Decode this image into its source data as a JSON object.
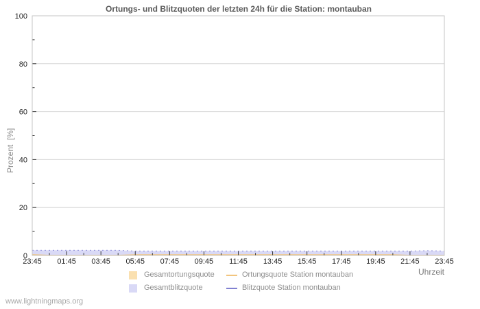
{
  "title": "Ortungs- und Blitzquoten der letzten 24h für die Station: montauban",
  "axes": {
    "y_label": "Prozent  [%]",
    "x_label": "Uhrzeit"
  },
  "watermark": "www.lightningmaps.org",
  "colors": {
    "background": "#ffffff",
    "title": "#5a5a5a",
    "grid": "#d6d6d6",
    "border": "#c6c6c6",
    "tick": "#333333",
    "tick_label": "#1f1f1f",
    "axis_label": "#8a8a8a",
    "legend_text": "#8c8c8c",
    "watermark": "#a8a8a8",
    "area_ortung": "#fae0b0",
    "area_blitz": "#d9d9f6",
    "line_ortung": "#f2c57e",
    "line_blitz": "#8181d1"
  },
  "legend": [
    {
      "label": "Gesamtortungsquote",
      "swatch": "area",
      "color": "#fae0b0"
    },
    {
      "label": "Ortungsquote Station montauban",
      "swatch": "line",
      "color": "#f2c57e"
    },
    {
      "label": "Gesamtblitzquote",
      "swatch": "area",
      "color": "#d9d9f6"
    },
    {
      "label": "Blitzquote Station montauban",
      "swatch": "line",
      "color": "#8181d1"
    }
  ],
  "chart_data": {
    "type": "area",
    "title": "Ortungs- und Blitzquoten der letzten 24h für die Station: montauban",
    "xlabel": "Uhrzeit",
    "ylabel": "Prozent [%]",
    "ylim": [
      0,
      100
    ],
    "y_ticks_major": [
      0,
      20,
      40,
      60,
      80,
      100
    ],
    "y_ticks_minor": [
      10,
      30,
      50,
      70,
      90
    ],
    "grid": "horizontal-only",
    "legend_position": "bottom",
    "x_hours": [
      0,
      1,
      2,
      3,
      4,
      5,
      6,
      7,
      8,
      9,
      10,
      11,
      12,
      13,
      14,
      15,
      16,
      17,
      18,
      19,
      20,
      21,
      22,
      23,
      24
    ],
    "x_tick_labels_major": [
      "23:45",
      "01:45",
      "03:45",
      "05:45",
      "07:45",
      "09:45",
      "11:45",
      "13:45",
      "15:45",
      "17:45",
      "19:45",
      "21:45",
      "23:45"
    ],
    "series": [
      {
        "name": "Gesamtortungsquote",
        "type": "area",
        "color": "#fae0b0",
        "values": [
          0.4,
          0.1,
          0.1,
          0.1,
          0.1,
          0.1,
          0.35,
          0.35,
          0.35,
          0.35,
          0.35,
          0.35,
          0.35,
          0.35,
          0.35,
          0.35,
          0.35,
          0.35,
          0.35,
          0.35,
          0.35,
          0.35,
          0.1,
          0.1,
          0.1
        ]
      },
      {
        "name": "Gesamtblitzquote",
        "type": "area",
        "color": "#d9d9f6",
        "values": [
          2.2,
          2.2,
          2.2,
          2.2,
          2.2,
          2.2,
          1.8,
          1.8,
          1.8,
          1.8,
          1.8,
          1.8,
          1.8,
          1.8,
          1.8,
          1.8,
          1.8,
          1.8,
          1.8,
          1.8,
          1.8,
          1.8,
          1.8,
          2.0,
          1.8
        ]
      },
      {
        "name": "Ortungsquote Station montauban",
        "type": "line",
        "color": "#f2c57e",
        "dasharray": "",
        "values": [
          0.4,
          0.1,
          0.1,
          0.1,
          0.1,
          0.1,
          0.35,
          0.35,
          0.35,
          0.35,
          0.35,
          0.35,
          0.35,
          0.35,
          0.35,
          0.35,
          0.35,
          0.35,
          0.35,
          0.35,
          0.35,
          0.35,
          0.1,
          0.1,
          0.1
        ]
      },
      {
        "name": "Blitzquote Station montauban",
        "type": "line",
        "color": "#8181d1",
        "dasharray": "2 4",
        "values": [
          2.2,
          2.2,
          2.2,
          2.2,
          2.2,
          2.2,
          1.8,
          1.8,
          1.8,
          1.8,
          1.8,
          1.8,
          1.8,
          1.8,
          1.8,
          1.8,
          1.8,
          1.8,
          1.8,
          1.8,
          1.8,
          1.8,
          1.8,
          2.0,
          1.8
        ]
      }
    ]
  }
}
